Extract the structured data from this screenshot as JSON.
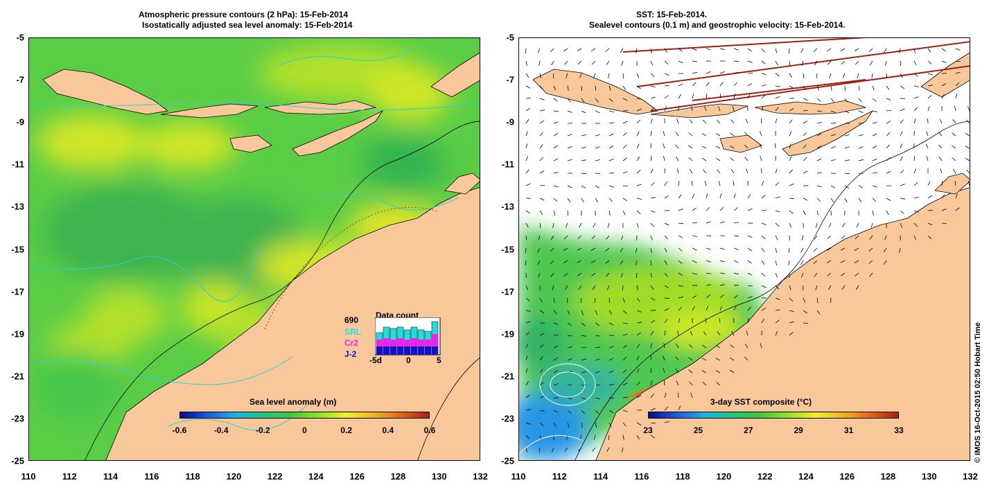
{
  "left_panel": {
    "title_line1": "Atmospheric pressure contours (2 hPa): 15-Feb-2014",
    "title_line2": "Isostatically adjusted sea level anomaly: 15-Feb-2014",
    "colorbar_title": "Sea level anomaly (m)",
    "colorbar_ticks": [
      "-0.6",
      "-0.4",
      "-0.2",
      "0",
      "0.2",
      "0.4",
      "0.6"
    ],
    "colorbar_colors": [
      "#0a0a8c",
      "#1a5ae6",
      "#1ab4e6",
      "#1ec882",
      "#3cc83c",
      "#8ce61e",
      "#f0f01e",
      "#f0b41e",
      "#e66414",
      "#aa1e14"
    ],
    "data_count": {
      "total": "690",
      "title": "Data count",
      "missions": [
        {
          "name": "SRL",
          "color": "#22dddd"
        },
        {
          "name": "Cr2",
          "color": "#ee22ee"
        },
        {
          "name": "J-2",
          "color": "#1111cc"
        }
      ],
      "x_ticks": [
        "-5d",
        "0",
        "5"
      ]
    }
  },
  "right_panel": {
    "title_line1": "SST: 15-Feb-2014.",
    "title_line2": "Sealevel contours (0.1 m) and geostrophic velocity: 15-Feb-2014.",
    "colorbar_title": "3-day SST composite (°C)",
    "colorbar_ticks": [
      "23",
      "25",
      "27",
      "29",
      "31",
      "33"
    ],
    "colorbar_colors": [
      "#0a0a8c",
      "#1a5ae6",
      "#1ab4e6",
      "#1ec882",
      "#3cc83c",
      "#8ce61e",
      "#f0f01e",
      "#f0b41e",
      "#e66414",
      "#aa1e14"
    ]
  },
  "y_ticks": [
    "-5",
    "-7",
    "-9",
    "-11",
    "-13",
    "-15",
    "-17",
    "-19",
    "-21",
    "-23",
    "-25"
  ],
  "x_ticks": [
    "110",
    "112",
    "114",
    "116",
    "118",
    "120",
    "122",
    "124",
    "126",
    "128",
    "130",
    "132"
  ],
  "credit": "© IMOS 16-Oct-2015 02:50 Hobart Time",
  "colors": {
    "land": "#f8c89a",
    "sea_green": "#46c84b",
    "sea_yellow": "#c8e628",
    "sst_background": "#ffffff",
    "contour_cyan": "#28d2d2"
  }
}
